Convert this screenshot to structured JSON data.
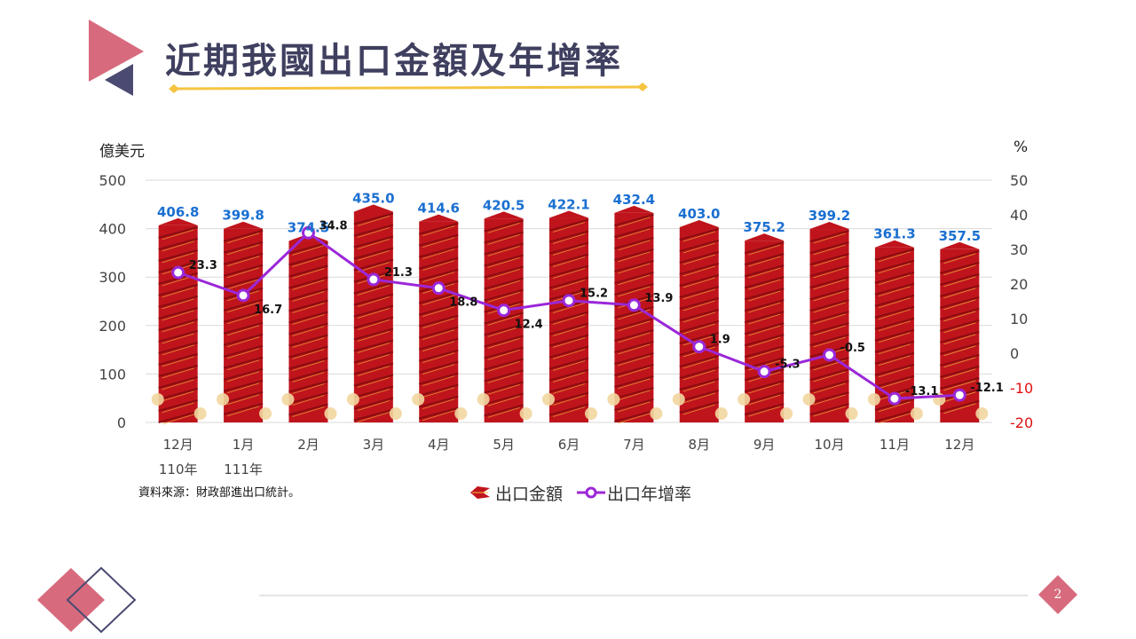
{
  "title": "近期我國出口金額及年增率",
  "left_unit": "億美元",
  "right_unit": "%",
  "source": "資料來源：財政部進出口統計。",
  "legend": {
    "bars": "出口金額",
    "line": "出口年增率"
  },
  "page_number": "2",
  "colors": {
    "bar": "#c0141c",
    "bar_dark": "#8a0c10",
    "line": "#9b27d8",
    "amount_label": "#1a6fd1",
    "negative_axis": "#e01010",
    "title": "#3f3f5f",
    "accent_pink": "#d76b7d",
    "accent_navy": "#4a4a72",
    "gold": "#f5c441"
  },
  "chart_data": {
    "type": "bar",
    "categories": [
      "12月",
      "1月",
      "2月",
      "3月",
      "4月",
      "5月",
      "6月",
      "7月",
      "8月",
      "9月",
      "10月",
      "11月",
      "12月"
    ],
    "year_labels": [
      "110年",
      "111年",
      "",
      "",
      "",
      "",
      "",
      "",
      "",
      "",
      "",
      "",
      ""
    ],
    "left_axis": {
      "ylim": [
        0,
        500
      ],
      "ticks": [
        "0",
        "100",
        "200",
        "300",
        "400",
        "500"
      ]
    },
    "right_axis": {
      "ylim": [
        -20,
        50
      ],
      "ticks": [
        "-20",
        "-10",
        "0",
        "10",
        "20",
        "30",
        "40",
        "50"
      ]
    },
    "series": [
      {
        "name": "出口金額",
        "type": "bar",
        "axis": "left",
        "values": [
          406.8,
          399.8,
          374.5,
          435.0,
          414.6,
          420.5,
          422.1,
          432.4,
          403.0,
          375.2,
          399.2,
          361.3,
          357.5
        ],
        "labels": [
          "406.8",
          "399.8",
          "374.5",
          "435.0",
          "414.6",
          "420.5",
          "422.1",
          "432.4",
          "403.0",
          "375.2",
          "399.2",
          "361.3",
          "357.5"
        ]
      },
      {
        "name": "出口年增率",
        "type": "line",
        "axis": "right",
        "values": [
          23.3,
          16.7,
          34.8,
          21.3,
          18.8,
          12.4,
          15.2,
          13.9,
          1.9,
          -5.3,
          -0.5,
          -13.1,
          -12.1
        ],
        "labels": [
          "23.3",
          "16.7",
          "34.8",
          "21.3",
          "18.8",
          "12.4",
          "15.2",
          "13.9",
          "1.9",
          "-5.3",
          "-0.5",
          "-13.1",
          "-12.1"
        ]
      }
    ]
  }
}
